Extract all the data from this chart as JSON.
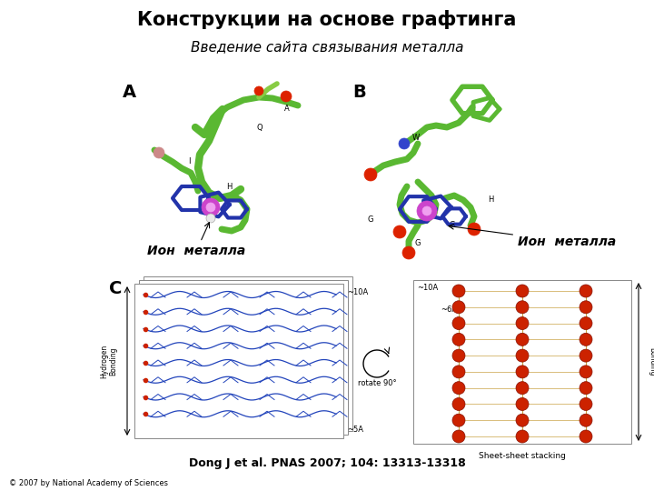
{
  "title": "Конструкции на основе графтинга",
  "subtitle": "Введение сайта связывания металла",
  "label_A": "A",
  "label_B": "B",
  "label_C": "C",
  "ion_metal_left": "Ион  металла",
  "ion_metal_right": "Ион  металла",
  "citation": "Dong J et al. PNAS 2007; 104: 13313-13318",
  "copyright": "© 2007 by National Academy of Sciences",
  "bg_color": "#ffffff",
  "title_fontsize": 15,
  "subtitle_fontsize": 11,
  "label_fontsize": 14,
  "ion_fontsize": 10,
  "citation_fontsize": 9,
  "copyright_fontsize": 6,
  "mol_green": "#5ab832",
  "mol_dark_green": "#3a8a1a",
  "mol_blue": "#2233aa",
  "mol_magenta": "#cc44cc",
  "mol_red": "#dd2200",
  "mol_white": "#e8e8e8",
  "mol_pink": "#cc8888",
  "sheet_bg": "#f5f5ff",
  "sheet_blue": "#2244bb",
  "sheet_red": "#cc2200",
  "sheet_gold": "#c8a040"
}
